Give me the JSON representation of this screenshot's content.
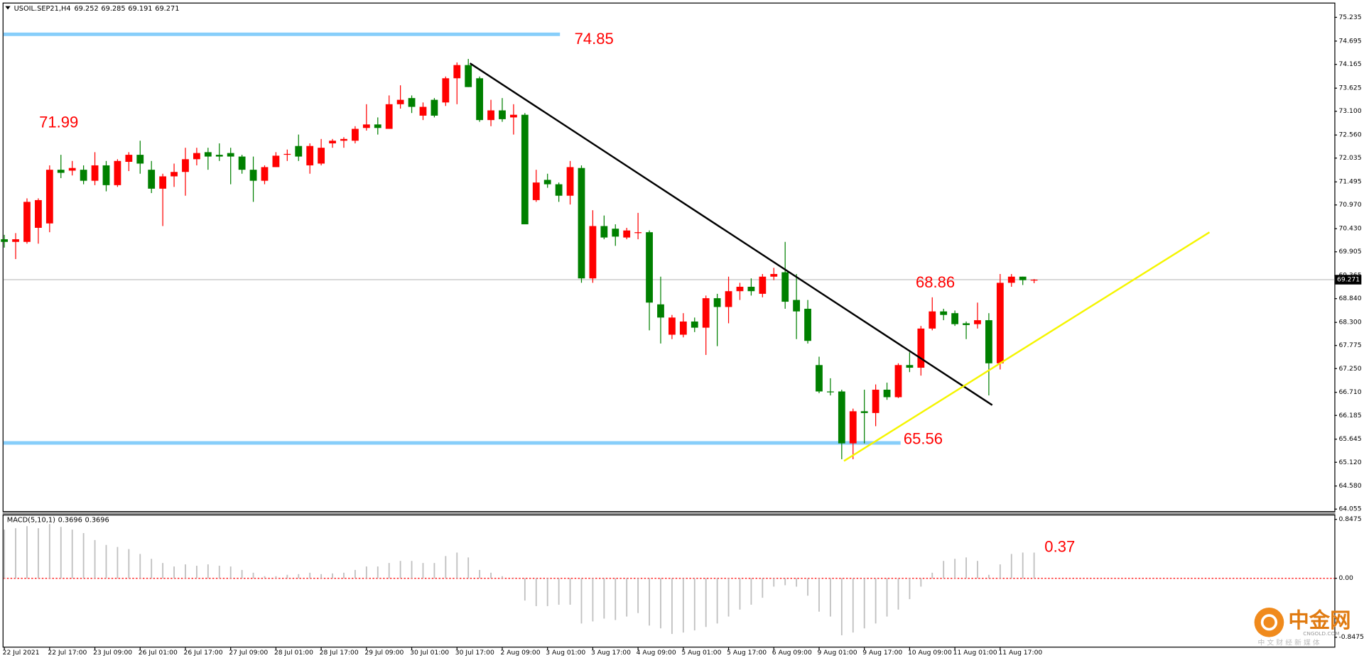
{
  "chart_data": {
    "type": "candlestick",
    "symbol": "USOIL.SEP21,H4",
    "up_color": "#ff0000",
    "down_color": "#008000",
    "categories": [
      "22 Jul 2021",
      null,
      null,
      null,
      "22 Jul 17:00",
      null,
      null,
      null,
      "23 Jul 09:00",
      null,
      null,
      null,
      "26 Jul 01:00",
      null,
      null,
      null,
      "26 Jul 17:00",
      null,
      null,
      null,
      "27 Jul 09:00",
      null,
      null,
      null,
      "28 Jul 01:00",
      null,
      null,
      null,
      "28 Jul 17:00",
      null,
      null,
      null,
      "29 Jul 09:00",
      null,
      null,
      null,
      "30 Jul 01:00",
      null,
      null,
      null,
      "30 Jul 17:00",
      null,
      null,
      null,
      "2 Aug 09:00",
      null,
      null,
      null,
      "3 Aug 01:00",
      null,
      null,
      null,
      "3 Aug 17:00",
      null,
      null,
      null,
      "4 Aug 09:00",
      null,
      null,
      null,
      "5 Aug 01:00",
      null,
      null,
      null,
      "5 Aug 17:00",
      null,
      null,
      null,
      "6 Aug 09:00",
      null,
      null,
      null,
      "9 Aug 01:00",
      null,
      null,
      null,
      "9 Aug 17:00",
      null,
      null,
      null,
      "10 Aug 09:00",
      null,
      null,
      null,
      "11 Aug 01:00",
      null,
      null,
      null,
      "11 Aug 17:00",
      null,
      null,
      null
    ],
    "open": [
      70.19,
      70.13,
      70.13,
      70.45,
      70.55,
      71.77,
      71.75,
      71.77,
      71.52,
      71.87,
      71.42,
      71.95,
      72.11,
      71.77,
      71.34,
      71.62,
      71.72,
      72.01,
      72.17,
      72.11,
      72.15,
      72.07,
      71.77,
      71.52,
      71.83,
      72.11,
      72.31,
      71.87,
      71.91,
      72.37,
      72.43,
      72.43,
      72.72,
      72.8,
      72.7,
      73.26,
      73.4,
      73.0,
      73.36,
      73.3,
      73.85,
      74.15,
      73.85,
      72.9,
      73.12,
      72.96,
      73.02,
      71.08,
      71.54,
      71.44,
      71.18,
      71.81,
      69.3,
      70.49,
      70.43,
      70.23,
      70.33,
      70.35,
      68.71,
      68.02,
      68.02,
      68.32,
      68.18,
      68.85,
      68.65,
      69.01,
      69.11,
      68.95,
      69.34,
      69.44,
      68.81,
      68.61,
      67.33,
      66.73,
      66.73,
      65.55,
      66.28,
      66.24,
      66.77,
      66.6,
      67.33,
      67.27,
      68.16,
      68.55,
      68.51,
      68.28,
      68.26,
      68.35,
      67.37,
      69.2,
      69.34,
      69.252
    ],
    "high": [
      70.29,
      70.33,
      71.12,
      71.12,
      71.87,
      72.11,
      71.97,
      71.87,
      72.17,
      71.97,
      72.01,
      72.17,
      72.43,
      71.97,
      71.68,
      71.91,
      72.27,
      72.27,
      72.27,
      72.37,
      72.27,
      72.11,
      72.07,
      71.87,
      72.17,
      72.23,
      72.57,
      72.37,
      72.47,
      72.47,
      72.51,
      72.76,
      73.26,
      72.96,
      73.46,
      73.69,
      73.46,
      73.3,
      73.4,
      73.89,
      74.21,
      74.29,
      73.89,
      73.36,
      73.4,
      73.26,
      73.06,
      71.77,
      71.68,
      71.48,
      71.97,
      71.87,
      70.85,
      70.73,
      70.53,
      70.45,
      70.79,
      70.39,
      69.34,
      68.47,
      68.51,
      68.41,
      68.91,
      68.95,
      69.34,
      69.2,
      69.3,
      69.4,
      69.54,
      70.13,
      69.4,
      68.81,
      67.52,
      67.03,
      66.77,
      66.34,
      66.77,
      66.89,
      66.93,
      67.37,
      67.62,
      68.22,
      68.87,
      68.61,
      68.57,
      68.32,
      68.75,
      68.51,
      69.4,
      69.4,
      69.34,
      69.285
    ],
    "low": [
      70.0,
      69.74,
      70.09,
      70.09,
      70.35,
      71.58,
      71.64,
      71.44,
      71.42,
      71.28,
      71.38,
      71.74,
      71.68,
      71.24,
      70.49,
      71.38,
      71.18,
      71.87,
      71.77,
      71.97,
      71.44,
      71.68,
      71.04,
      71.44,
      71.83,
      71.97,
      71.97,
      71.68,
      71.87,
      72.27,
      72.27,
      72.37,
      72.66,
      72.57,
      72.7,
      73.16,
      73.06,
      72.9,
      72.96,
      73.22,
      73.26,
      73.65,
      72.86,
      72.76,
      72.86,
      72.57,
      70.53,
      71.04,
      71.36,
      71.04,
      70.98,
      69.2,
      69.2,
      70.19,
      70.04,
      70.19,
      70.19,
      68.12,
      67.82,
      67.92,
      67.96,
      68.08,
      67.56,
      67.76,
      68.28,
      68.81,
      68.91,
      68.87,
      69.26,
      68.61,
      67.92,
      67.82,
      66.69,
      66.64,
      65.19,
      65.19,
      65.55,
      65.94,
      66.54,
      66.58,
      67.17,
      67.09,
      68.12,
      68.35,
      68.22,
      67.92,
      68.16,
      66.64,
      67.23,
      69.11,
      69.15,
      69.191
    ],
    "close": [
      70.13,
      70.19,
      71.04,
      71.08,
      71.77,
      71.7,
      71.81,
      71.52,
      71.87,
      71.42,
      71.97,
      72.11,
      71.91,
      71.34,
      71.62,
      71.72,
      72.01,
      72.15,
      72.07,
      72.07,
      72.07,
      71.77,
      71.52,
      71.83,
      72.09,
      72.13,
      72.07,
      72.31,
      72.27,
      72.43,
      72.47,
      72.7,
      72.8,
      72.72,
      73.26,
      73.36,
      73.2,
      73.2,
      73.0,
      73.85,
      74.15,
      73.65,
      72.9,
      73.12,
      72.92,
      73.02,
      70.53,
      71.48,
      71.44,
      71.18,
      71.83,
      69.3,
      70.49,
      70.23,
      70.25,
      70.39,
      70.35,
      68.75,
      68.41,
      68.41,
      68.32,
      68.18,
      68.85,
      68.65,
      69.01,
      69.11,
      69.01,
      69.34,
      69.4,
      68.77,
      68.55,
      67.88,
      66.73,
      66.71,
      65.55,
      66.28,
      66.24,
      66.77,
      66.6,
      67.33,
      67.27,
      68.16,
      68.55,
      68.47,
      68.26,
      68.24,
      68.35,
      67.37,
      69.2,
      69.34,
      69.26,
      69.271
    ],
    "ylim": [
      64.01,
      75.57
    ],
    "yticks": [
      75.235,
      74.695,
      74.165,
      73.625,
      {
        "value": 73.1,
        "label": "73.100"
      },
      {
        "value": 72.56,
        "label": "72.560"
      },
      72.035,
      71.495,
      {
        "value": 70.97,
        "label": "70.970"
      },
      {
        "value": 70.43,
        "label": "70.430"
      },
      69.905,
      69.365,
      {
        "value": 68.84,
        "label": "68.840"
      },
      {
        "value": 68.3,
        "label": "68.300"
      },
      67.775,
      {
        "value": 67.25,
        "label": "67.250"
      },
      {
        "value": 66.71,
        "label": "66.710"
      },
      66.185,
      65.645,
      {
        "value": 65.12,
        "label": "65.120"
      },
      {
        "value": 64.58,
        "label": "64.580"
      },
      64.055
    ],
    "grid": false,
    "levels": [
      {
        "value": 74.85,
        "color": "#87cefa",
        "end": 49.1
      },
      {
        "value": 65.56,
        "color": "#87cefa",
        "end": 79.2
      }
    ],
    "annotations": [
      71.99,
      68.86
    ],
    "trendlines": [
      {
        "color": "#000000",
        "points": [
          [
            41.15,
            74.19
          ],
          [
            87.3,
            66.42
          ]
        ]
      },
      {
        "color": "#f5f500",
        "points": [
          [
            74.2,
            65.15
          ],
          [
            106.5,
            70.35
          ]
        ]
      }
    ],
    "macd": {
      "name": "MACD(5,10,1)",
      "color": "#c0c0c0",
      "zero_line_color": "#ff0000",
      "values": [
        0.7,
        0.72,
        0.75,
        0.72,
        0.78,
        0.74,
        0.7,
        0.65,
        0.55,
        0.48,
        0.45,
        0.42,
        0.35,
        0.28,
        0.22,
        0.17,
        0.2,
        0.18,
        0.2,
        0.18,
        0.17,
        0.12,
        0.08,
        0.03,
        0.03,
        0.05,
        0.06,
        0.08,
        0.06,
        0.07,
        0.08,
        0.12,
        0.17,
        0.17,
        0.22,
        0.25,
        0.25,
        0.22,
        0.22,
        0.32,
        0.37,
        0.3,
        0.12,
        0.08,
        0.03,
        0.01,
        -0.32,
        -0.4,
        -0.4,
        -0.38,
        -0.38,
        -0.65,
        -0.62,
        -0.58,
        -0.6,
        -0.55,
        -0.5,
        -0.68,
        -0.72,
        -0.8,
        -0.78,
        -0.75,
        -0.7,
        -0.65,
        -0.55,
        -0.45,
        -0.38,
        -0.28,
        -0.12,
        -0.1,
        -0.12,
        -0.25,
        -0.48,
        -0.55,
        -0.82,
        -0.78,
        -0.72,
        -0.65,
        -0.55,
        -0.45,
        -0.3,
        -0.12,
        0.08,
        0.25,
        0.28,
        0.3,
        0.25,
        0.05,
        0.2,
        0.35,
        0.37,
        0.3696
      ],
      "annotation": 0.37,
      "ylim": [
        -0.99,
        0.91
      ],
      "yticks": [
        0.8475,
        {
          "value": 0,
          "label": "0.00"
        },
        -0.8475
      ]
    },
    "watermark": {
      "name": "中金网",
      "domain": "CNGOLD.COM",
      "slogan": "中 文 财 经 新 媒 体"
    }
  }
}
